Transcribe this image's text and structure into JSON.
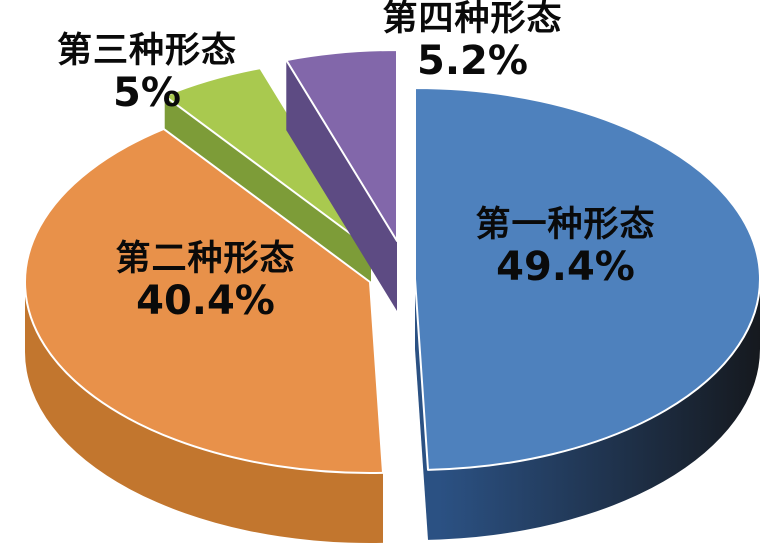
{
  "page": {
    "background": "#ffffff",
    "description_labels_color": "#0a0a0a"
  },
  "chart_data": {
    "type": "pie",
    "projection": "3d-exploded",
    "title": "",
    "unit": "%",
    "total": 100,
    "legend_position": "none",
    "labels_on_chart": true,
    "slices": [
      {
        "label": "第一种形态",
        "value": 49.4,
        "value_text": "49.4%",
        "color": "#4e81bd",
        "side_color": "#2b5183",
        "side_color_dark": "#15181d"
      },
      {
        "label": "第二种形态",
        "value": 40.4,
        "value_text": "40.4%",
        "color": "#e8914a",
        "side_color": "#c2762e"
      },
      {
        "label": "第三种形态",
        "value": 5,
        "value_text": "5%",
        "color": "#a9c94f",
        "side_color": "#7d9c38"
      },
      {
        "label": "第四种形态",
        "value": 5.2,
        "value_text": "5.2%",
        "color": "#8267aa",
        "side_color": "#5d4b83"
      }
    ]
  }
}
